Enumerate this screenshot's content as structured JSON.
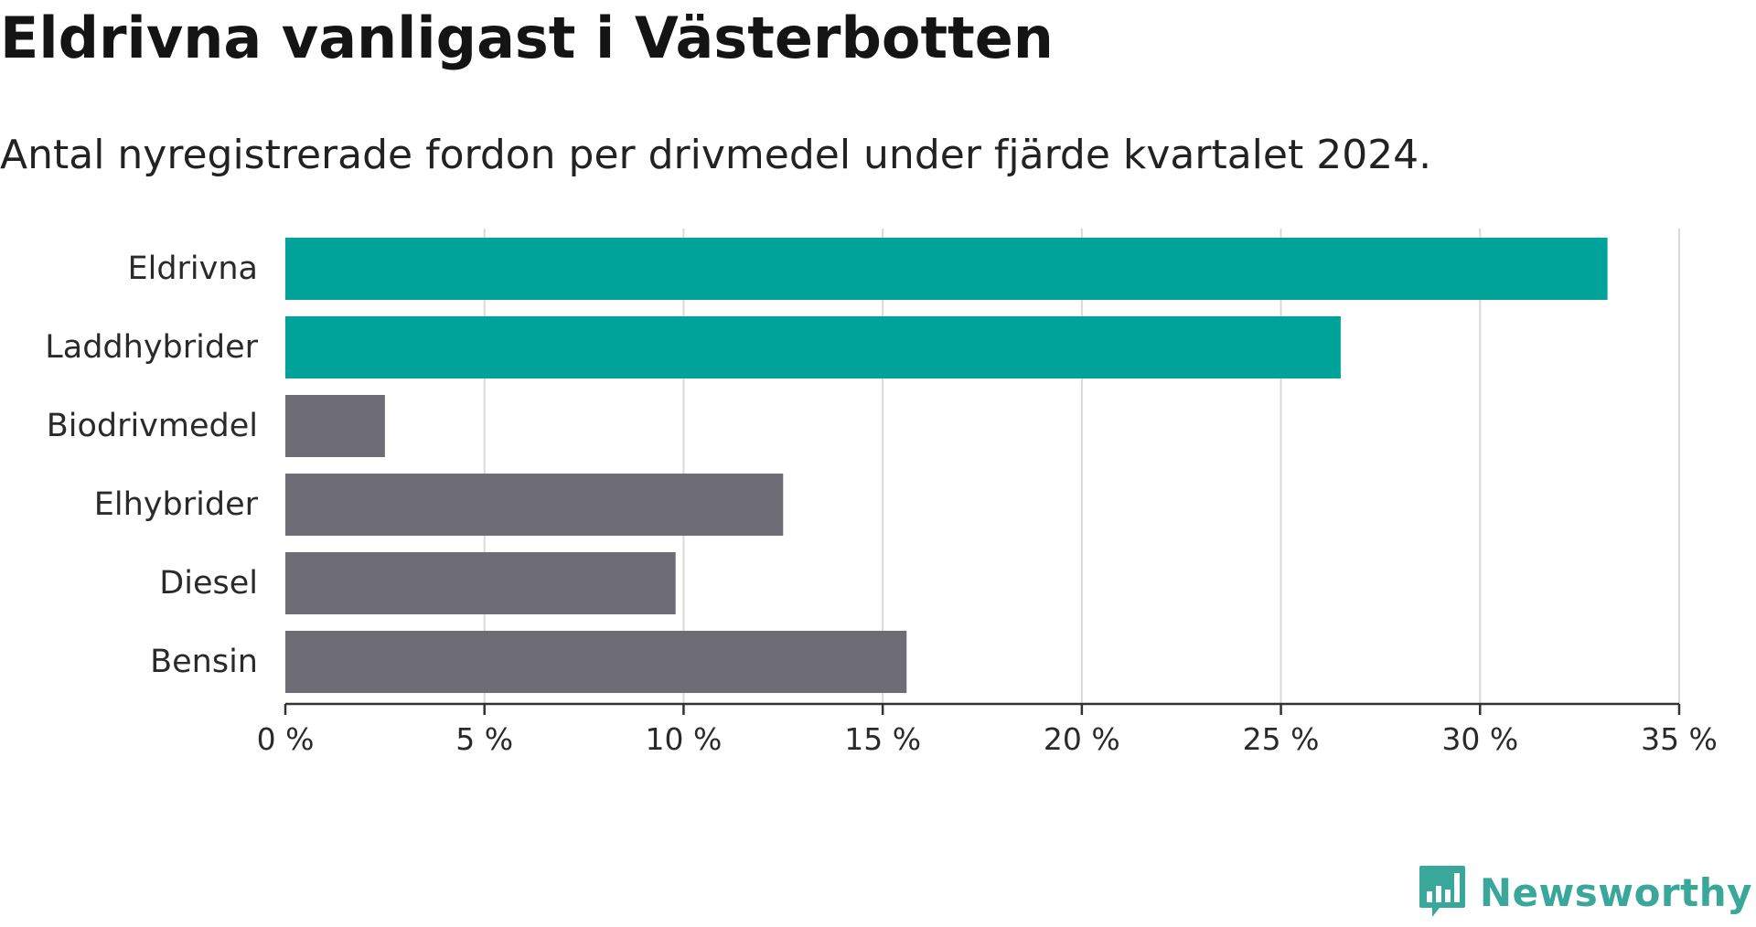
{
  "header": {
    "title": "Eldrivna vanligast i Västerbotten",
    "subtitle": "Antal nyregistrerade fordon per drivmedel under fjärde kvartalet 2024."
  },
  "brand": {
    "name": "Newsworthy",
    "logo_icon": "bar-chart-speech-bubble-icon",
    "color": "#3aa79b"
  },
  "colors": {
    "highlight": "#00a39a",
    "neutral": "#6e6d75",
    "grid": "#d9d9d9",
    "axis": "#333333"
  },
  "chart_data": {
    "type": "bar",
    "orientation": "horizontal",
    "categories": [
      "Eldrivna",
      "Laddhybrider",
      "Biodrivmedel",
      "Elhybrider",
      "Diesel",
      "Bensin"
    ],
    "values": [
      33.2,
      26.5,
      2.5,
      12.5,
      9.8,
      15.6
    ],
    "highlighted": [
      true,
      true,
      false,
      false,
      false,
      false
    ],
    "xlim": [
      0,
      35
    ],
    "x_ticks": [
      0,
      5,
      10,
      15,
      20,
      25,
      30,
      35
    ],
    "x_tick_labels": [
      "0 %",
      "5 %",
      "10 %",
      "15 %",
      "20 %",
      "25 %",
      "30 %",
      "35 %"
    ],
    "xlabel": "",
    "ylabel": "",
    "grid": "vertical"
  }
}
